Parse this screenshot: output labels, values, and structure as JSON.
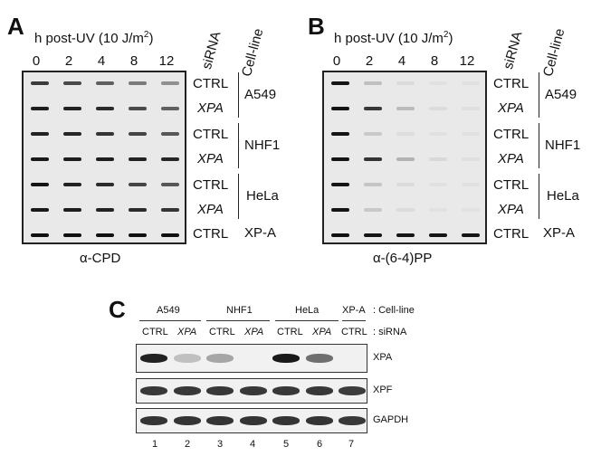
{
  "panelA": {
    "letter": "A",
    "header": "h post-UV (10 J/m",
    "header_sup": "2",
    "header_end": ")",
    "timepoints": [
      "0",
      "2",
      "4",
      "8",
      "12"
    ],
    "col_sirna": "siRNA",
    "col_cellline": "Cell-line",
    "rows": [
      {
        "sirna": "CTRL",
        "intensity": [
          0.78,
          0.72,
          0.62,
          0.5,
          0.4
        ]
      },
      {
        "sirna": "XPA",
        "intensity": [
          0.92,
          0.9,
          0.86,
          0.72,
          0.62
        ]
      },
      {
        "sirna": "CTRL",
        "intensity": [
          0.9,
          0.88,
          0.82,
          0.74,
          0.66
        ]
      },
      {
        "sirna": "XPA",
        "intensity": [
          0.94,
          0.92,
          0.92,
          0.9,
          0.88
        ]
      },
      {
        "sirna": "CTRL",
        "intensity": [
          0.96,
          0.9,
          0.86,
          0.74,
          0.66
        ]
      },
      {
        "sirna": "XPA",
        "intensity": [
          0.94,
          0.92,
          0.9,
          0.86,
          0.82
        ]
      },
      {
        "sirna": "CTRL",
        "intensity": [
          0.98,
          0.98,
          0.98,
          0.98,
          0.98
        ]
      }
    ],
    "celllines": [
      "A549",
      "NHF1",
      "HeLa",
      "XP-A"
    ],
    "caption": "α-CPD"
  },
  "panelB": {
    "letter": "B",
    "header": "h post-UV (10 J/m",
    "header_sup": "2",
    "header_end": ")",
    "timepoints": [
      "0",
      "2",
      "4",
      "8",
      "12"
    ],
    "col_sirna": "siRNA",
    "col_cellline": "Cell-line",
    "rows": [
      {
        "sirna": "CTRL",
        "intensity": [
          0.96,
          0.18,
          0.06,
          0.03,
          0.03
        ]
      },
      {
        "sirna": "XPA",
        "intensity": [
          0.96,
          0.8,
          0.2,
          0.06,
          0.04
        ]
      },
      {
        "sirna": "CTRL",
        "intensity": [
          0.96,
          0.14,
          0.05,
          0.03,
          0.03
        ]
      },
      {
        "sirna": "XPA",
        "intensity": [
          0.96,
          0.82,
          0.24,
          0.07,
          0.04
        ]
      },
      {
        "sirna": "CTRL",
        "intensity": [
          0.96,
          0.16,
          0.06,
          0.03,
          0.03
        ]
      },
      {
        "sirna": "XPA",
        "intensity": [
          0.96,
          0.14,
          0.06,
          0.03,
          0.03
        ]
      },
      {
        "sirna": "CTRL",
        "intensity": [
          0.98,
          0.96,
          0.96,
          0.96,
          0.96
        ]
      }
    ],
    "celllines": [
      "A549",
      "NHF1",
      "HeLa",
      "XP-A"
    ],
    "caption": "α-(6-4)PP"
  },
  "panelC": {
    "letter": "C",
    "celllines": [
      "A549",
      "NHF1",
      "HeLa",
      "XP-A"
    ],
    "cellline_label": ": Cell-line",
    "sirna_label": ": siRNA",
    "lanes": [
      {
        "sirna": "CTRL",
        "number": "1"
      },
      {
        "sirna": "XPA",
        "number": "2"
      },
      {
        "sirna": "CTRL",
        "number": "3"
      },
      {
        "sirna": "XPA",
        "number": "4"
      },
      {
        "sirna": "CTRL",
        "number": "5"
      },
      {
        "sirna": "XPA",
        "number": "6"
      },
      {
        "sirna": "CTRL",
        "number": "7"
      }
    ],
    "blots": [
      {
        "protein": "XPA",
        "intensity": [
          0.9,
          0.18,
          0.3,
          0.0,
          0.94,
          0.55,
          0.0
        ]
      },
      {
        "protein": "XPF",
        "intensity": [
          0.8,
          0.8,
          0.8,
          0.8,
          0.8,
          0.8,
          0.78
        ]
      },
      {
        "protein": "GAPDH",
        "intensity": [
          0.82,
          0.82,
          0.82,
          0.82,
          0.82,
          0.82,
          0.8
        ]
      }
    ]
  }
}
